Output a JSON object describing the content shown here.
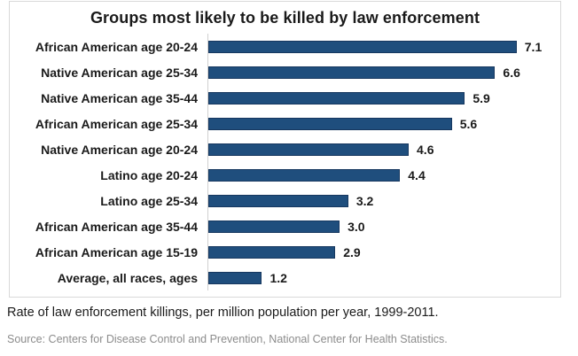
{
  "chart": {
    "title": "Groups most likely to be killed by law enforcement",
    "caption": "Rate of law enforcement killings, per million population per year, 1999-2011.",
    "source": "Source: Centers for Disease Control and Prevention, National Center for Health Statistics.",
    "bar_color": "#1f4e7d",
    "bar_border_color": "#16375f"
  },
  "chart_data": {
    "type": "bar",
    "orientation": "horizontal",
    "title": "Groups most likely to be killed by law enforcement",
    "xlabel": "Rate of law enforcement killings, per million population per year, 1999-2011",
    "ylabel": "",
    "xlim": [
      0,
      7.5
    ],
    "grid": false,
    "legend": false,
    "categories": [
      "African American age 20-24",
      "Native American age 25-34",
      "Native American age 35-44",
      "African American age 25-34",
      "Native American age 20-24",
      "Latino age 20-24",
      "Latino age 25-34",
      "African American age 35-44",
      "African American age 15-19",
      "Average, all races, ages"
    ],
    "values": [
      7.1,
      6.6,
      5.9,
      5.6,
      4.6,
      4.4,
      3.2,
      3.0,
      2.9,
      1.2
    ],
    "value_labels": [
      "7.1",
      "6.6",
      "5.9",
      "5.6",
      "4.6",
      "4.4",
      "3.2",
      "3.0",
      "2.9",
      "1.2"
    ]
  }
}
